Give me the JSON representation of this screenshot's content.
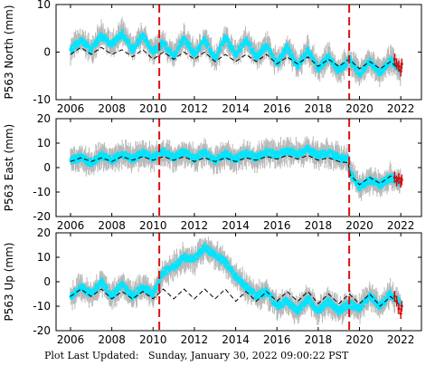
{
  "footer": {
    "label": "Plot Last Updated:",
    "timestamp": "Sunday, January 30, 2022 09:00:22 PST"
  },
  "colors": {
    "error_bars": "#b8b8b8",
    "data": "#00e5ff",
    "model": "#000000",
    "recent": "#dd0000",
    "event_lines": "#dd1111"
  },
  "chart_data": [
    {
      "type": "scatter",
      "ylabel": "P563 North (mm)",
      "xlim": [
        2005.3,
        2023.0
      ],
      "ylim": [
        -10,
        10
      ],
      "xticks": [
        "2006",
        "2008",
        "2010",
        "2012",
        "2014",
        "2016",
        "2018",
        "2020",
        "2022"
      ],
      "yticks": [
        "10",
        "0",
        "-10"
      ],
      "event_lines": [
        2010.3,
        2019.5
      ],
      "series": [
        {
          "kind": "data",
          "x": [
            2006.0,
            2006.5,
            2007.0,
            2007.5,
            2008.0,
            2008.5,
            2009.0,
            2009.5,
            2010.0,
            2010.5,
            2011.0,
            2011.5,
            2012.0,
            2012.5,
            2013.0,
            2013.5,
            2014.0,
            2014.5,
            2015.0,
            2015.5,
            2016.0,
            2016.5,
            2017.0,
            2017.5,
            2018.0,
            2018.5,
            2019.0,
            2019.5,
            2020.0,
            2020.5,
            2021.0,
            2021.5,
            2022.0
          ],
          "y": [
            0.5,
            2.5,
            0.5,
            3.5,
            1.5,
            4.0,
            0.5,
            3.5,
            0.0,
            2.0,
            -1.0,
            3.0,
            -0.5,
            2.5,
            -1.5,
            3.0,
            -0.5,
            2.5,
            -1.0,
            1.5,
            -2.5,
            1.0,
            -3.0,
            0.5,
            -3.5,
            -1.0,
            -4.0,
            -1.5,
            -4.5,
            -2.0,
            -4.5,
            -1.5,
            -4.0
          ]
        },
        {
          "kind": "model",
          "x": [
            2006.0,
            2006.5,
            2007.0,
            2007.5,
            2008.0,
            2008.5,
            2009.0,
            2009.5,
            2010.0,
            2010.5,
            2011.0,
            2011.5,
            2012.0,
            2012.5,
            2013.0,
            2013.5,
            2014.0,
            2014.5,
            2015.0,
            2015.5,
            2016.0,
            2016.5,
            2017.0,
            2017.5,
            2018.0,
            2018.5,
            2019.0,
            2019.5,
            2020.0,
            2020.5,
            2021.0,
            2021.5,
            2022.0
          ],
          "y": [
            -0.5,
            1.0,
            -0.5,
            1.0,
            -0.5,
            0.5,
            -1.0,
            0.5,
            -1.5,
            0.0,
            -1.5,
            0.0,
            -1.5,
            0.0,
            -2.0,
            -0.5,
            -2.0,
            -0.5,
            -2.0,
            -0.5,
            -2.5,
            -1.0,
            -2.5,
            -1.0,
            -3.0,
            -1.5,
            -3.0,
            -1.5,
            -3.5,
            -2.0,
            -3.5,
            -2.0,
            -4.0
          ]
        },
        {
          "kind": "recent",
          "x": [
            2021.7,
            2021.8,
            2021.9,
            2022.0,
            2022.05
          ],
          "y": [
            -1.5,
            -2.5,
            -3.0,
            -4.0,
            -2.5
          ]
        }
      ]
    },
    {
      "type": "scatter",
      "ylabel": "P563 East (mm)",
      "xlim": [
        2005.3,
        2023.0
      ],
      "ylim": [
        -20,
        20
      ],
      "xticks": [
        "2006",
        "2008",
        "2010",
        "2012",
        "2014",
        "2016",
        "2018",
        "2020",
        "2022"
      ],
      "yticks": [
        "20",
        "10",
        "0",
        "-10",
        "-20"
      ],
      "event_lines": [
        2010.3,
        2019.5
      ],
      "series": [
        {
          "kind": "data",
          "x": [
            2006.0,
            2006.5,
            2007.0,
            2007.5,
            2008.0,
            2008.5,
            2009.0,
            2009.5,
            2010.0,
            2010.5,
            2011.0,
            2011.5,
            2012.0,
            2012.5,
            2013.0,
            2013.5,
            2014.0,
            2014.5,
            2015.0,
            2015.5,
            2016.0,
            2016.5,
            2017.0,
            2017.5,
            2018.0,
            2018.5,
            2019.0,
            2019.45,
            2019.55,
            2020.0,
            2020.5,
            2021.0,
            2021.5,
            2022.0
          ],
          "y": [
            3.0,
            4.0,
            2.0,
            5.0,
            3.0,
            5.5,
            3.5,
            6.0,
            4.0,
            6.5,
            4.0,
            6.5,
            3.5,
            6.0,
            3.0,
            5.5,
            3.5,
            6.0,
            4.0,
            6.5,
            5.0,
            7.0,
            5.5,
            7.5,
            5.0,
            6.0,
            4.0,
            3.5,
            -2.0,
            -8.0,
            -5.0,
            -7.0,
            -4.0,
            -6.0
          ]
        },
        {
          "kind": "model",
          "x": [
            2006.0,
            2006.5,
            2007.0,
            2007.5,
            2008.0,
            2008.5,
            2009.0,
            2009.5,
            2010.0,
            2010.5,
            2011.0,
            2011.5,
            2012.0,
            2012.5,
            2013.0,
            2013.5,
            2014.0,
            2014.5,
            2015.0,
            2015.5,
            2016.0,
            2016.5,
            2017.0,
            2017.5,
            2018.0,
            2018.5,
            2019.0,
            2019.45,
            2019.55,
            2020.0,
            2020.5,
            2021.0,
            2021.5,
            2022.0
          ],
          "y": [
            2.5,
            4.0,
            2.5,
            4.0,
            2.5,
            4.5,
            3.0,
            4.5,
            3.0,
            4.5,
            3.0,
            4.5,
            2.5,
            4.0,
            2.5,
            4.0,
            2.5,
            4.0,
            3.0,
            4.5,
            3.5,
            5.0,
            3.5,
            5.0,
            3.0,
            4.0,
            2.5,
            2.0,
            -3.0,
            -7.0,
            -4.0,
            -6.5,
            -3.5,
            -5.0
          ]
        },
        {
          "kind": "recent",
          "x": [
            2021.7,
            2021.8,
            2021.9,
            2022.0,
            2022.05
          ],
          "y": [
            -4.0,
            -5.5,
            -4.5,
            -6.0,
            -5.0
          ]
        }
      ]
    },
    {
      "type": "scatter",
      "ylabel": "P563 Up (mm)",
      "xlim": [
        2005.3,
        2023.0
      ],
      "ylim": [
        -20,
        20
      ],
      "xticks": [
        "2006",
        "2008",
        "2010",
        "2012",
        "2014",
        "2016",
        "2018",
        "2020",
        "2022"
      ],
      "yticks": [
        "20",
        "10",
        "0",
        "-10",
        "-20"
      ],
      "event_lines": [
        2010.3,
        2019.5
      ],
      "series": [
        {
          "kind": "data",
          "x": [
            2006.0,
            2006.5,
            2007.0,
            2007.5,
            2008.0,
            2008.5,
            2009.0,
            2009.5,
            2010.0,
            2010.5,
            2011.0,
            2011.5,
            2012.0,
            2012.5,
            2013.0,
            2013.5,
            2014.0,
            2014.5,
            2015.0,
            2015.5,
            2016.0,
            2016.5,
            2017.0,
            2017.5,
            2018.0,
            2018.5,
            2019.0,
            2019.5,
            2020.0,
            2020.5,
            2021.0,
            2021.5,
            2022.0
          ],
          "y": [
            -6.0,
            -2.0,
            -5.0,
            0.0,
            -6.0,
            -1.0,
            -6.0,
            -2.0,
            -5.0,
            4.0,
            6.0,
            10.0,
            9.0,
            14.0,
            11.0,
            8.0,
            2.0,
            -2.0,
            -6.0,
            -4.0,
            -10.0,
            -8.0,
            -12.0,
            -7.0,
            -12.0,
            -8.0,
            -12.0,
            -9.0,
            -11.0,
            -6.0,
            -10.0,
            -5.0,
            -9.0
          ]
        },
        {
          "kind": "model",
          "x": [
            2006.0,
            2006.5,
            2007.0,
            2007.5,
            2008.0,
            2008.5,
            2009.0,
            2009.5,
            2010.0,
            2010.5,
            2011.0,
            2011.5,
            2012.0,
            2012.5,
            2013.0,
            2013.5,
            2014.0,
            2014.5,
            2015.0,
            2015.5,
            2016.0,
            2016.5,
            2017.0,
            2017.5,
            2018.0,
            2018.5,
            2019.0,
            2019.5,
            2020.0,
            2020.5,
            2021.0,
            2021.5,
            2022.0
          ],
          "y": [
            -6.0,
            -3.0,
            -6.0,
            -3.0,
            -7.0,
            -4.0,
            -7.0,
            -4.0,
            -7.0,
            -3.0,
            -7.0,
            -3.0,
            -7.0,
            -3.0,
            -7.0,
            -3.0,
            -8.0,
            -4.0,
            -8.0,
            -4.0,
            -8.0,
            -4.0,
            -8.0,
            -4.0,
            -9.0,
            -5.0,
            -9.0,
            -5.0,
            -9.0,
            -5.0,
            -10.0,
            -6.0,
            -10.0
          ]
        },
        {
          "kind": "recent",
          "x": [
            2021.7,
            2021.8,
            2021.9,
            2022.0,
            2022.05
          ],
          "y": [
            -6.0,
            -8.0,
            -11.0,
            -13.0,
            -10.0
          ]
        }
      ]
    }
  ]
}
